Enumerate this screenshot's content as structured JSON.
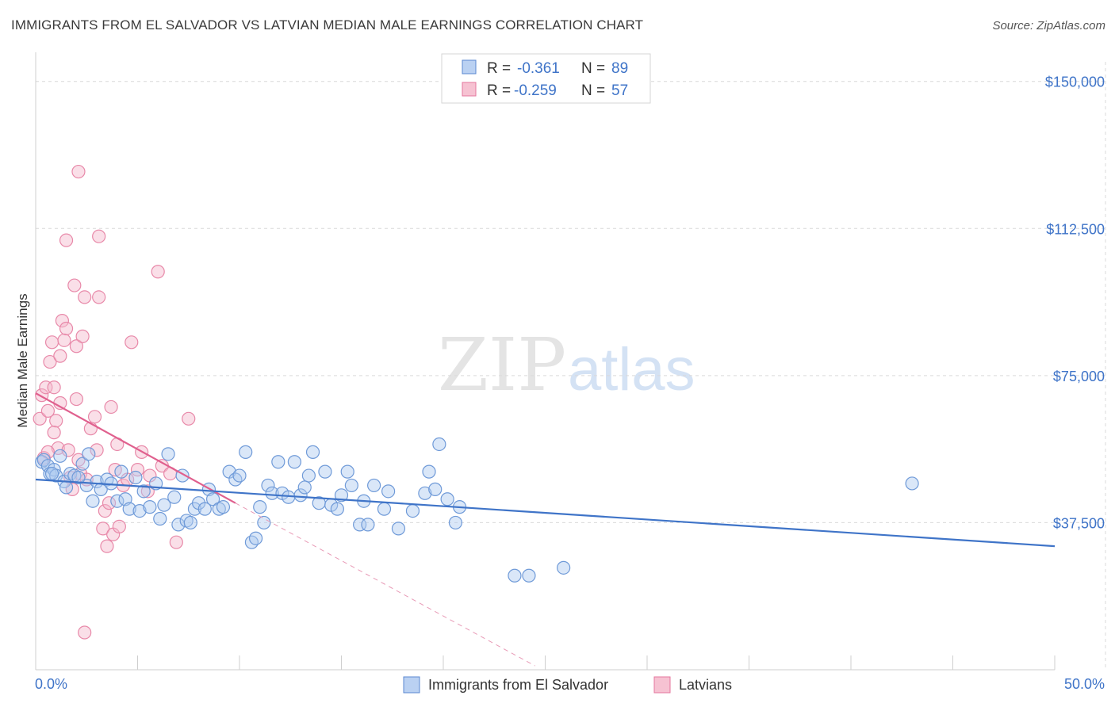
{
  "header": {
    "title": "IMMIGRANTS FROM EL SALVADOR VS LATVIAN MEDIAN MALE EARNINGS CORRELATION CHART",
    "source": "Source: ZipAtlas.com"
  },
  "watermark": {
    "zip": "ZIP",
    "atlas": "atlas"
  },
  "colors": {
    "blue": "#3f74c8",
    "blue_fill": "#aecaf0",
    "pink": "#e0608e",
    "pink_fill": "#f5b8cb",
    "grid": "#d8d8d8"
  },
  "stats": [
    {
      "r_label": "R =",
      "r_value": "-0.361",
      "n_label": "N =",
      "n_value": "89",
      "series": "Immigrants from El Salvador"
    },
    {
      "r_label": "R =",
      "r_value": "-0.259",
      "n_label": "N =",
      "n_value": "57",
      "series": "Latvians"
    }
  ],
  "chart_data": {
    "type": "scatter",
    "title": "IMMIGRANTS FROM EL SALVADOR VS LATVIAN MEDIAN MALE EARNINGS CORRELATION CHART",
    "xlabel": "",
    "ylabel": "Median Male Earnings",
    "xlim": [
      0,
      50
    ],
    "ylim": [
      0,
      155000
    ],
    "x_tick_labels": [
      "0.0%",
      "50.0%"
    ],
    "y_ticks": [
      37500,
      75000,
      112500,
      150000
    ],
    "y_tick_labels": [
      "$37,500",
      "$75,000",
      "$112,500",
      "$150,000"
    ],
    "grid": true,
    "legend": [
      "Immigrants from El Salvador",
      "Latvians"
    ],
    "series": [
      {
        "name": "Immigrants from El Salvador",
        "color": "#3f74c8",
        "trend": {
          "x": [
            0,
            50
          ],
          "y": [
            48500,
            31500
          ],
          "style": "solid"
        },
        "points": [
          [
            0.3,
            53000
          ],
          [
            0.4,
            53500
          ],
          [
            0.6,
            52000
          ],
          [
            0.7,
            50000
          ],
          [
            0.9,
            51000
          ],
          [
            1.0,
            49500
          ],
          [
            1.2,
            54500
          ],
          [
            1.4,
            48000
          ],
          [
            1.7,
            50000
          ],
          [
            1.9,
            49500
          ],
          [
            2.3,
            52500
          ],
          [
            2.5,
            47000
          ],
          [
            2.6,
            55000
          ],
          [
            2.8,
            43000
          ],
          [
            3.0,
            48000
          ],
          [
            3.2,
            46000
          ],
          [
            3.5,
            48500
          ],
          [
            3.7,
            47500
          ],
          [
            4.0,
            43000
          ],
          [
            4.2,
            50500
          ],
          [
            4.4,
            43500
          ],
          [
            4.6,
            41000
          ],
          [
            4.9,
            49000
          ],
          [
            5.1,
            40500
          ],
          [
            5.3,
            45500
          ],
          [
            5.6,
            41500
          ],
          [
            5.9,
            47500
          ],
          [
            6.1,
            38500
          ],
          [
            6.3,
            42000
          ],
          [
            6.5,
            55000
          ],
          [
            6.8,
            44000
          ],
          [
            7.0,
            37000
          ],
          [
            7.2,
            49500
          ],
          [
            7.4,
            38000
          ],
          [
            7.6,
            37500
          ],
          [
            7.8,
            41000
          ],
          [
            8.0,
            42500
          ],
          [
            8.3,
            41000
          ],
          [
            8.5,
            46000
          ],
          [
            8.7,
            43500
          ],
          [
            9.0,
            41000
          ],
          [
            9.2,
            41500
          ],
          [
            9.5,
            50500
          ],
          [
            9.8,
            48500
          ],
          [
            10.0,
            49500
          ],
          [
            10.3,
            55500
          ],
          [
            10.6,
            32500
          ],
          [
            10.8,
            33500
          ],
          [
            11.0,
            41500
          ],
          [
            11.2,
            37500
          ],
          [
            11.4,
            47000
          ],
          [
            11.6,
            45000
          ],
          [
            11.9,
            53000
          ],
          [
            12.1,
            45000
          ],
          [
            12.4,
            44000
          ],
          [
            12.7,
            53000
          ],
          [
            13.0,
            44500
          ],
          [
            13.2,
            46500
          ],
          [
            13.4,
            49500
          ],
          [
            13.6,
            55500
          ],
          [
            13.9,
            42500
          ],
          [
            14.2,
            50500
          ],
          [
            14.5,
            42000
          ],
          [
            14.8,
            41000
          ],
          [
            15.0,
            44500
          ],
          [
            15.3,
            50500
          ],
          [
            15.5,
            47000
          ],
          [
            15.9,
            37000
          ],
          [
            16.1,
            43000
          ],
          [
            16.3,
            37000
          ],
          [
            16.6,
            47000
          ],
          [
            17.1,
            41000
          ],
          [
            17.3,
            45500
          ],
          [
            17.8,
            36000
          ],
          [
            18.5,
            40500
          ],
          [
            19.1,
            45000
          ],
          [
            19.3,
            50500
          ],
          [
            19.6,
            46000
          ],
          [
            19.8,
            57500
          ],
          [
            20.2,
            43500
          ],
          [
            20.6,
            37500
          ],
          [
            20.8,
            41500
          ],
          [
            23.5,
            24000
          ],
          [
            24.2,
            24000
          ],
          [
            25.9,
            26000
          ],
          [
            43.0,
            47500
          ],
          [
            1.5,
            46500
          ],
          [
            0.8,
            50000
          ],
          [
            2.1,
            49000
          ]
        ]
      },
      {
        "name": "Latvians",
        "color": "#e0608e",
        "trend": {
          "x": [
            0,
            9.8
          ],
          "y": [
            70500,
            42500
          ],
          "style": "solid"
        },
        "trend_extension": {
          "x": [
            9.8,
            24.5
          ],
          "y": [
            42500,
            1000
          ],
          "style": "dashed"
        },
        "points": [
          [
            0.2,
            64000
          ],
          [
            0.3,
            70000
          ],
          [
            0.4,
            54000
          ],
          [
            0.5,
            72000
          ],
          [
            0.6,
            66000
          ],
          [
            0.7,
            78500
          ],
          [
            0.8,
            83500
          ],
          [
            0.9,
            72000
          ],
          [
            1.0,
            63500
          ],
          [
            1.1,
            56500
          ],
          [
            1.2,
            80000
          ],
          [
            1.3,
            89000
          ],
          [
            1.4,
            84000
          ],
          [
            1.5,
            87000
          ],
          [
            1.6,
            56000
          ],
          [
            1.7,
            49000
          ],
          [
            1.8,
            46000
          ],
          [
            1.9,
            98000
          ],
          [
            2.0,
            82500
          ],
          [
            2.1,
            53500
          ],
          [
            2.2,
            50000
          ],
          [
            2.3,
            85000
          ],
          [
            2.1,
            127000
          ],
          [
            1.5,
            109500
          ],
          [
            3.1,
            110500
          ],
          [
            2.4,
            95000
          ],
          [
            3.1,
            95000
          ],
          [
            6.0,
            101500
          ],
          [
            3.0,
            56000
          ],
          [
            2.5,
            48500
          ],
          [
            2.7,
            61500
          ],
          [
            2.9,
            64500
          ],
          [
            3.3,
            36000
          ],
          [
            3.4,
            40500
          ],
          [
            3.6,
            42500
          ],
          [
            3.8,
            34500
          ],
          [
            3.9,
            51000
          ],
          [
            4.1,
            36500
          ],
          [
            4.3,
            47000
          ],
          [
            4.5,
            48500
          ],
          [
            4.7,
            83500
          ],
          [
            5.0,
            51000
          ],
          [
            5.2,
            55500
          ],
          [
            5.6,
            49500
          ],
          [
            6.2,
            52000
          ],
          [
            6.6,
            50000
          ],
          [
            6.9,
            32500
          ],
          [
            7.5,
            64000
          ],
          [
            3.7,
            67000
          ],
          [
            4.0,
            57500
          ],
          [
            1.2,
            68000
          ],
          [
            0.6,
            55500
          ],
          [
            0.9,
            60500
          ],
          [
            2.0,
            69000
          ],
          [
            3.5,
            31500
          ],
          [
            2.4,
            9500
          ],
          [
            5.5,
            45500
          ]
        ]
      }
    ]
  }
}
